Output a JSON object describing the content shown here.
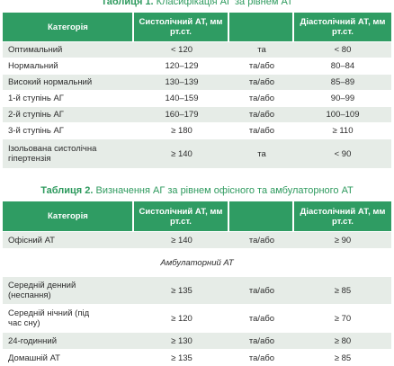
{
  "table1": {
    "title_prefix": "Таблиця 1.",
    "title_text": "Класифікація АГ за рівнем АТ",
    "headers": [
      "Категорія",
      "Систолічний АТ, мм рт.ст.",
      "",
      "Діастолічний АТ, мм рт.ст."
    ],
    "rows": [
      [
        "Оптимальний",
        "< 120",
        "та",
        "< 80"
      ],
      [
        "Нормальний",
        "120–129",
        "та/або",
        "80–84"
      ],
      [
        "Високий нормальний",
        "130–139",
        "та/або",
        "85–89"
      ],
      [
        "1-й ступінь АГ",
        "140–159",
        "та/або",
        "90–99"
      ],
      [
        "2-й ступінь АГ",
        "160–179",
        "та/або",
        "100–109"
      ],
      [
        "3-й ступінь АГ",
        "≥ 180",
        "та/або",
        "≥ 110"
      ],
      [
        "Ізольована систолічна гіпертензія",
        "≥ 140",
        "та",
        "< 90"
      ]
    ]
  },
  "table2": {
    "title_prefix": "Таблиця 2.",
    "title_text": "Визначення АГ за рівнем офісного та амбулаторного АТ",
    "headers": [
      "Категорія",
      "Систолічний АТ, мм рт.ст.",
      "",
      "Діастолічний АТ, мм рт.ст."
    ],
    "office_row": [
      "Офісний АТ",
      "≥ 140",
      "та/або",
      "≥ 90"
    ],
    "subheader": "Амбулаторний АТ",
    "rows": [
      [
        "Середній денний (неспання)",
        "≥ 135",
        "та/або",
        "≥ 85"
      ],
      [
        "Середній нічний (під час сну)",
        "≥ 120",
        "та/або",
        "≥ 70"
      ],
      [
        "24-годинний",
        "≥ 130",
        "та/або",
        "≥ 80"
      ],
      [
        "Домашній АТ",
        "≥ 135",
        "та/або",
        "≥ 85"
      ]
    ]
  }
}
